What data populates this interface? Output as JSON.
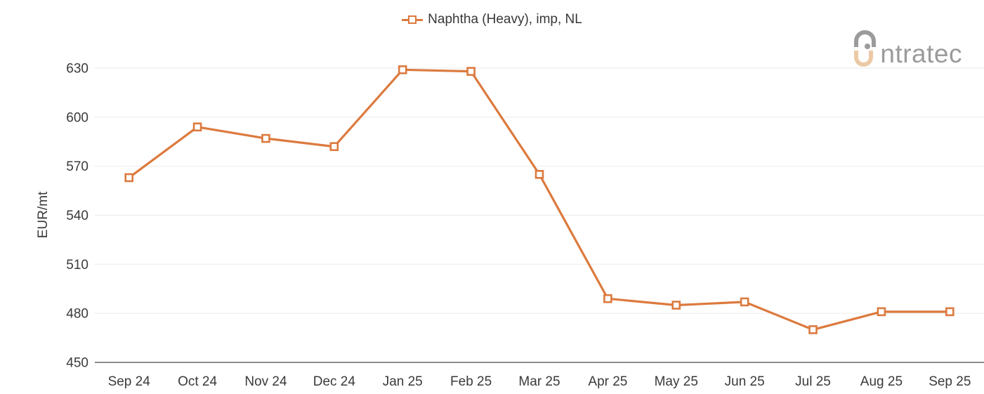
{
  "logo": {
    "brand": "intratec",
    "wordmark_text": "ntratec",
    "gray": "#9b9b9b",
    "tan": "#ecc9a6"
  },
  "colors": {
    "series": "#dc7a3e",
    "grid": "#f0f0f0",
    "axis_line": "#8c8c8c",
    "text": "#3a3a3a",
    "background": "#ffffff"
  },
  "chart_data": {
    "type": "line",
    "title": "",
    "categories": [
      "Sep 24",
      "Oct 24",
      "Nov 24",
      "Dec 24",
      "Jan 25",
      "Feb 25",
      "Mar 25",
      "Apr 25",
      "May 25",
      "Jun 25",
      "Jul 25",
      "Aug 25",
      "Sep 25"
    ],
    "series": [
      {
        "name": "Naphtha (Heavy), imp, NL",
        "color": "#dc7a3e",
        "marker": "open-square",
        "values": [
          563,
          594,
          587,
          582,
          629,
          628,
          565,
          489,
          485,
          487,
          470,
          481,
          481
        ]
      }
    ],
    "xlabel": "",
    "ylabel": "EUR/mt",
    "ylim": [
      450,
      630
    ],
    "yticks": [
      450,
      480,
      510,
      540,
      570,
      600,
      630
    ],
    "grid": true,
    "legend_position": "top-center"
  }
}
